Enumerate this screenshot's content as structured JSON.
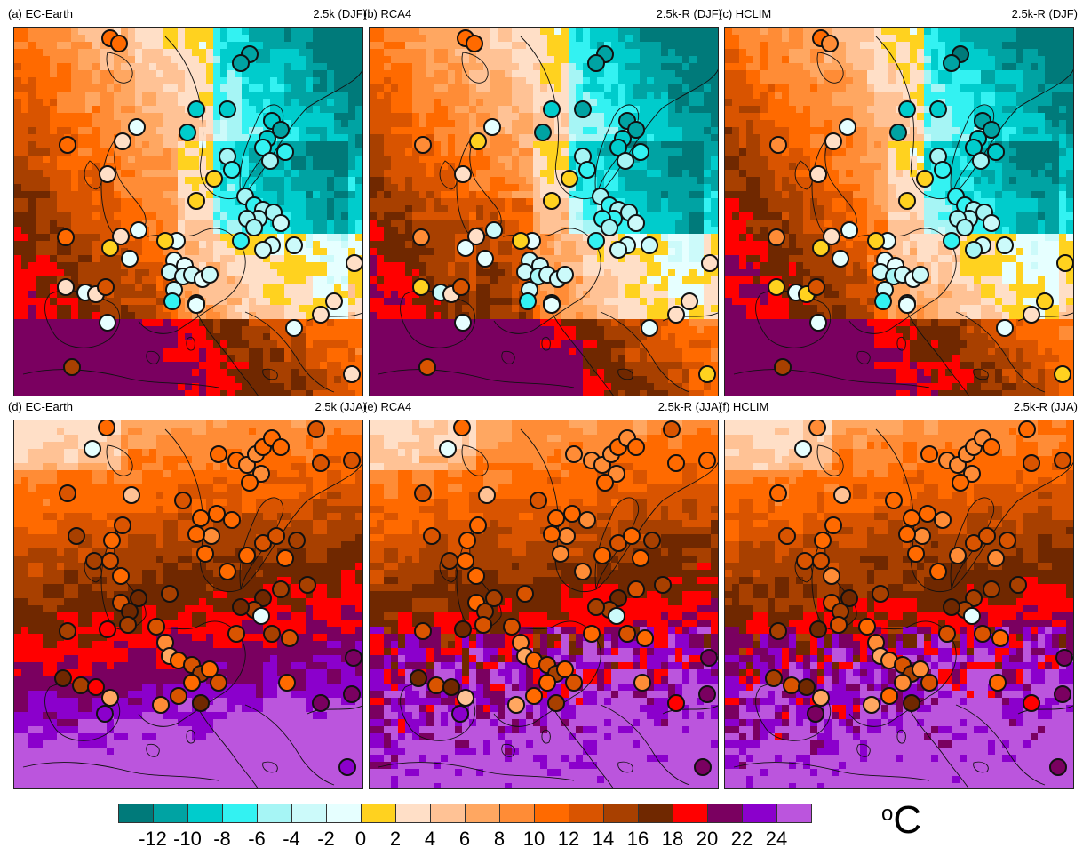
{
  "panels": [
    {
      "title": "(a) EC-Earth",
      "label": "2.5k (DJF)",
      "season": "DJF",
      "model": "ecearth"
    },
    {
      "title": "(b) RCA4",
      "label": "2.5k-R (DJF)",
      "season": "DJF",
      "model": "rca4"
    },
    {
      "title": "(c) HCLIM",
      "label": "2.5k-R (DJF)",
      "season": "DJF",
      "model": "hclim"
    },
    {
      "title": "(d) EC-Earth",
      "label": "2.5k (JJA)",
      "season": "JJA",
      "model": "ecearth"
    },
    {
      "title": "(e) RCA4",
      "label": "2.5k-R (JJA)",
      "season": "JJA",
      "model": "rca4"
    },
    {
      "title": "(f) HCLIM",
      "label": "2.5k-R (JJA)",
      "season": "JJA",
      "model": "hclim"
    }
  ],
  "colorbar": {
    "colors": [
      "#007a7a",
      "#00a3a3",
      "#00cccc",
      "#33f2f2",
      "#a6f5f5",
      "#ccfafa",
      "#e6ffff",
      "#ffd21f",
      "#ffdfc7",
      "#ffc295",
      "#ffa761",
      "#ff8c36",
      "#ff6a00",
      "#d95400",
      "#a84000",
      "#702800",
      "#ff0000",
      "#7a0060",
      "#8b00cc",
      "#bb55dd"
    ],
    "ticks": [
      "-12",
      "-10",
      "-8",
      "-6",
      "-4",
      "-2",
      "0",
      "2",
      "4",
      "6",
      "8",
      "10",
      "12",
      "14",
      "16",
      "18",
      "20",
      "22",
      "24"
    ]
  },
  "unit": {
    "deg": "o",
    "letter": "C"
  }
}
